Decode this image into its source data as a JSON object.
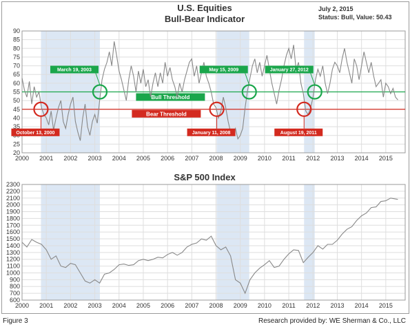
{
  "footer": {
    "figure_label": "Figure 3",
    "credit": "Research provided by: WE Sherman & Co., LLC"
  },
  "colors": {
    "bull": "#1aa64b",
    "bear": "#d32a1f",
    "band": "#dce7f4",
    "line": "#888888"
  },
  "chart_data": [
    {
      "type": "line",
      "title": "U.S. Equities",
      "subtitle": "Bull-Bear Indicator",
      "date_text": "July 2, 2015",
      "status_text": "Status: Bull, Value: 50.43",
      "xlim": [
        2000.0,
        2015.8
      ],
      "ylim": [
        20,
        90
      ],
      "y_ticks": [
        20,
        25,
        30,
        35,
        40,
        45,
        50,
        55,
        60,
        65,
        70,
        75,
        80,
        85,
        90
      ],
      "x_ticks": [
        "2000",
        "2001",
        "2002",
        "2003",
        "2004",
        "2005",
        "2006",
        "2007",
        "2008",
        "2009",
        "2010",
        "2011",
        "2012",
        "2013",
        "2014",
        "2015"
      ],
      "grid": true,
      "thresholds": {
        "bull": {
          "value": 55,
          "label": "Bull Threshold"
        },
        "bear": {
          "value": 45,
          "label": "Bear Threshold"
        }
      },
      "bear_periods": [
        [
          2000.78,
          2003.21
        ],
        [
          2008.03,
          2009.37
        ],
        [
          2011.63,
          2012.07
        ]
      ],
      "annotations": [
        {
          "label": "October 13, 2000",
          "x": 2000.78,
          "y": 45,
          "kind": "bear"
        },
        {
          "label": "March 19, 2003",
          "x": 2003.21,
          "y": 55,
          "kind": "bull"
        },
        {
          "label": "January 11, 2008",
          "x": 2008.03,
          "y": 45,
          "kind": "bear"
        },
        {
          "label": "May 15, 2009",
          "x": 2009.37,
          "y": 55,
          "kind": "bull"
        },
        {
          "label": "August 19, 2011",
          "x": 2011.63,
          "y": 45,
          "kind": "bear"
        },
        {
          "label": "January 27, 2012",
          "x": 2012.07,
          "y": 55,
          "kind": "bull"
        }
      ],
      "series": [
        {
          "x": [
            2000.0,
            2000.1,
            2000.2,
            2000.3,
            2000.4,
            2000.5,
            2000.6,
            2000.7,
            2000.8,
            2000.9,
            2001.0,
            2001.1,
            2001.2,
            2001.3,
            2001.4,
            2001.5,
            2001.6,
            2001.7,
            2001.8,
            2001.9,
            2002.0,
            2002.1,
            2002.2,
            2002.3,
            2002.4,
            2002.5,
            2002.6,
            2002.7,
            2002.8,
            2002.9,
            2003.0,
            2003.1,
            2003.2,
            2003.3,
            2003.4,
            2003.5,
            2003.6,
            2003.7,
            2003.8,
            2003.9,
            2004.0,
            2004.1,
            2004.2,
            2004.3,
            2004.4,
            2004.5,
            2004.6,
            2004.7,
            2004.8,
            2004.9,
            2005.0,
            2005.1,
            2005.2,
            2005.3,
            2005.4,
            2005.5,
            2005.6,
            2005.7,
            2005.8,
            2005.9,
            2006.0,
            2006.1,
            2006.2,
            2006.3,
            2006.4,
            2006.5,
            2006.6,
            2006.7,
            2006.8,
            2006.9,
            2007.0,
            2007.1,
            2007.2,
            2007.3,
            2007.4,
            2007.5,
            2007.6,
            2007.7,
            2007.8,
            2007.9,
            2008.0,
            2008.1,
            2008.2,
            2008.3,
            2008.4,
            2008.5,
            2008.6,
            2008.7,
            2008.8,
            2008.9,
            2009.0,
            2009.1,
            2009.2,
            2009.3,
            2009.4,
            2009.5,
            2009.6,
            2009.7,
            2009.8,
            2009.9,
            2010.0,
            2010.1,
            2010.2,
            2010.3,
            2010.4,
            2010.5,
            2010.6,
            2010.7,
            2010.8,
            2010.9,
            2011.0,
            2011.1,
            2011.2,
            2011.3,
            2011.4,
            2011.5,
            2011.6,
            2011.7,
            2011.8,
            2011.9,
            2012.0,
            2012.1,
            2012.2,
            2012.3,
            2012.4,
            2012.5,
            2012.6,
            2012.7,
            2012.8,
            2012.9,
            2013.0,
            2013.1,
            2013.2,
            2013.3,
            2013.4,
            2013.5,
            2013.6,
            2013.7,
            2013.8,
            2013.9,
            2014.0,
            2014.1,
            2014.2,
            2014.3,
            2014.4,
            2014.5,
            2014.6,
            2014.7,
            2014.8,
            2014.9,
            2015.0,
            2015.1,
            2015.2,
            2015.3,
            2015.4,
            2015.5
          ],
          "values": [
            63,
            56,
            52,
            61,
            48,
            58,
            52,
            55,
            46,
            42,
            40,
            36,
            44,
            33,
            40,
            46,
            50,
            38,
            34,
            42,
            48,
            52,
            38,
            32,
            27,
            40,
            48,
            35,
            30,
            38,
            42,
            37,
            50,
            62,
            68,
            72,
            78,
            70,
            84,
            76,
            67,
            62,
            56,
            50,
            62,
            70,
            64,
            55,
            67,
            60,
            68,
            58,
            62,
            52,
            60,
            66,
            58,
            66,
            60,
            72,
            64,
            69,
            62,
            58,
            52,
            60,
            55,
            62,
            67,
            72,
            74,
            64,
            70,
            60,
            66,
            72,
            64,
            60,
            55,
            48,
            46,
            40,
            44,
            52,
            46,
            38,
            32,
            30,
            34,
            28,
            30,
            34,
            46,
            56,
            63,
            70,
            74,
            66,
            72,
            64,
            70,
            76,
            68,
            60,
            54,
            48,
            56,
            62,
            70,
            76,
            80,
            74,
            82,
            68,
            72,
            60,
            54,
            44,
            42,
            46,
            52,
            62,
            68,
            64,
            70,
            60,
            54,
            60,
            68,
            72,
            70,
            66,
            74,
            80,
            72,
            66,
            60,
            74,
            70,
            62,
            70,
            78,
            72,
            66,
            72,
            64,
            58,
            60,
            62,
            52,
            60,
            58,
            54,
            57,
            52,
            50.43
          ]
        }
      ]
    },
    {
      "type": "line",
      "title": "S&P 500 Index",
      "xlim": [
        2000.0,
        2015.8
      ],
      "ylim": [
        600,
        2300
      ],
      "y_ticks": [
        600,
        700,
        800,
        900,
        1000,
        1100,
        1200,
        1300,
        1400,
        1500,
        1600,
        1700,
        1800,
        1900,
        2000,
        2100,
        2200,
        2300
      ],
      "x_ticks": [
        "2000",
        "2001",
        "2002",
        "2003",
        "2004",
        "2005",
        "2006",
        "2007",
        "2008",
        "2009",
        "2010",
        "2011",
        "2012",
        "2013",
        "2014",
        "2015"
      ],
      "grid": true,
      "bear_periods": [
        [
          2000.78,
          2003.21
        ],
        [
          2008.03,
          2009.37
        ],
        [
          2011.63,
          2012.07
        ]
      ],
      "series": [
        {
          "x": [
            2000.0,
            2000.2,
            2000.4,
            2000.6,
            2000.8,
            2001.0,
            2001.2,
            2001.4,
            2001.6,
            2001.8,
            2002.0,
            2002.2,
            2002.4,
            2002.6,
            2002.8,
            2003.0,
            2003.2,
            2003.4,
            2003.6,
            2003.8,
            2004.0,
            2004.2,
            2004.4,
            2004.6,
            2004.8,
            2005.0,
            2005.2,
            2005.4,
            2005.6,
            2005.8,
            2006.0,
            2006.2,
            2006.4,
            2006.6,
            2006.8,
            2007.0,
            2007.2,
            2007.4,
            2007.6,
            2007.8,
            2008.0,
            2008.2,
            2008.4,
            2008.6,
            2008.8,
            2009.0,
            2009.2,
            2009.4,
            2009.6,
            2009.8,
            2010.0,
            2010.2,
            2010.4,
            2010.6,
            2010.8,
            2011.0,
            2011.2,
            2011.4,
            2011.6,
            2011.8,
            2012.0,
            2012.2,
            2012.4,
            2012.6,
            2012.8,
            2013.0,
            2013.2,
            2013.4,
            2013.6,
            2013.8,
            2014.0,
            2014.2,
            2014.4,
            2014.6,
            2014.8,
            2015.0,
            2015.2,
            2015.5
          ],
          "values": [
            1450,
            1380,
            1490,
            1450,
            1420,
            1340,
            1200,
            1250,
            1100,
            1080,
            1140,
            1120,
            1000,
            880,
            850,
            900,
            850,
            980,
            1000,
            1050,
            1120,
            1130,
            1110,
            1120,
            1180,
            1200,
            1180,
            1200,
            1230,
            1220,
            1270,
            1300,
            1260,
            1300,
            1380,
            1420,
            1440,
            1500,
            1480,
            1540,
            1400,
            1340,
            1380,
            1250,
            900,
            850,
            700,
            900,
            1000,
            1070,
            1120,
            1180,
            1080,
            1100,
            1200,
            1280,
            1340,
            1330,
            1150,
            1230,
            1300,
            1400,
            1350,
            1420,
            1420,
            1480,
            1570,
            1640,
            1680,
            1770,
            1840,
            1880,
            1960,
            1970,
            2050,
            2060,
            2100,
            2080
          ]
        }
      ]
    }
  ]
}
